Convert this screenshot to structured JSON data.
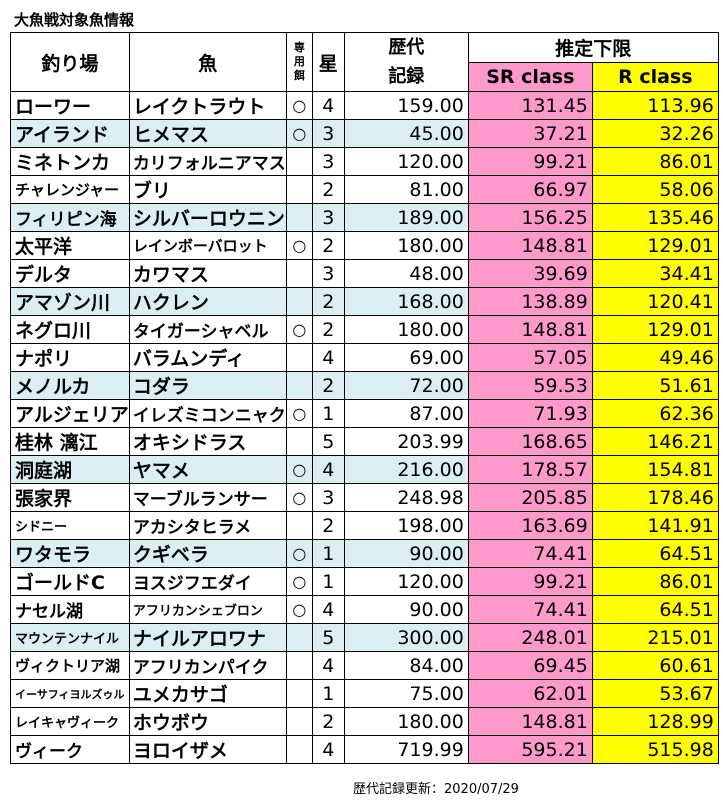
{
  "title": "大魚戦対象魚情報",
  "header": {
    "place": "釣り場",
    "fish": "魚",
    "bait": [
      "専",
      "用",
      "餌"
    ],
    "star": "星",
    "record": [
      "歴代",
      "記録"
    ],
    "limit": "推定下限",
    "sr": "SR class",
    "r": "R class"
  },
  "rows": [
    {
      "place": "ローワー",
      "fish": "レイクトラウト",
      "bait": "○",
      "star": "4",
      "record": "159.00",
      "sr": "131.45",
      "r": "113.96"
    },
    {
      "place": "アイランド",
      "fish": "ヒメマス",
      "bait": "○",
      "star": "3",
      "record": "45.00",
      "sr": "37.21",
      "r": "32.26"
    },
    {
      "place": "ミネトンカ",
      "fish": "カリフォルニアマス",
      "bait": "",
      "star": "3",
      "record": "120.00",
      "sr": "99.21",
      "r": "86.01"
    },
    {
      "place": "チャレンジャー",
      "fish": "ブリ",
      "bait": "",
      "star": "2",
      "record": "81.00",
      "sr": "66.97",
      "r": "58.06"
    },
    {
      "place": "フィリピン海",
      "fish": "シルバーロウニン",
      "bait": "",
      "star": "3",
      "record": "189.00",
      "sr": "156.25",
      "r": "135.46"
    },
    {
      "place": "太平洋",
      "fish": "レインボーバロット",
      "bait": "○",
      "star": "2",
      "record": "180.00",
      "sr": "148.81",
      "r": "129.01"
    },
    {
      "place": "デルタ",
      "fish": "カワマス",
      "bait": "",
      "star": "3",
      "record": "48.00",
      "sr": "39.69",
      "r": "34.41"
    },
    {
      "place": "アマゾン川",
      "fish": "ハクレン",
      "bait": "",
      "star": "2",
      "record": "168.00",
      "sr": "138.89",
      "r": "120.41"
    },
    {
      "place": "ネグロ川",
      "fish": "タイガーシャベル",
      "bait": "○",
      "star": "2",
      "record": "180.00",
      "sr": "148.81",
      "r": "129.01"
    },
    {
      "place": "ナポリ",
      "fish": "バラムンディ",
      "bait": "",
      "star": "4",
      "record": "69.00",
      "sr": "57.05",
      "r": "49.46"
    },
    {
      "place": "メノルカ",
      "fish": "コダラ",
      "bait": "",
      "star": "2",
      "record": "72.00",
      "sr": "59.53",
      "r": "51.61"
    },
    {
      "place": "アルジェリア",
      "fish": "イレズミコンニャク",
      "bait": "○",
      "star": "1",
      "record": "87.00",
      "sr": "71.93",
      "r": "62.36"
    },
    {
      "place": "桂林 漓江",
      "fish": "オキシドラス",
      "bait": "",
      "star": "5",
      "record": "203.99",
      "sr": "168.65",
      "r": "146.21"
    },
    {
      "place": "洞庭湖",
      "fish": "ヤマメ",
      "bait": "○",
      "star": "4",
      "record": "216.00",
      "sr": "178.57",
      "r": "154.81"
    },
    {
      "place": "張家界",
      "fish": "マーブルランサー",
      "bait": "○",
      "star": "3",
      "record": "248.98",
      "sr": "205.85",
      "r": "178.46"
    },
    {
      "place": "シドニー",
      "fish": "アカシタヒラメ",
      "bait": "",
      "star": "2",
      "record": "198.00",
      "sr": "163.69",
      "r": "141.91"
    },
    {
      "place": "ワタモラ",
      "fish": "クギベラ",
      "bait": "○",
      "star": "1",
      "record": "90.00",
      "sr": "74.41",
      "r": "64.51"
    },
    {
      "place": "ゴールドC",
      "fish": "ヨスジフエダイ",
      "bait": "○",
      "star": "1",
      "record": "120.00",
      "sr": "99.21",
      "r": "86.01"
    },
    {
      "place": "ナセル湖",
      "fish": "アフリカンシェブロン",
      "bait": "○",
      "star": "4",
      "record": "90.00",
      "sr": "74.41",
      "r": "64.51"
    },
    {
      "place": "マウンテンナイル",
      "fish": "ナイルアロワナ",
      "bait": "",
      "star": "5",
      "record": "300.00",
      "sr": "248.01",
      "r": "215.01"
    },
    {
      "place": "ヴィクトリア湖",
      "fish": "アフリカンパイク",
      "bait": "",
      "star": "4",
      "record": "84.00",
      "sr": "69.45",
      "r": "60.61"
    },
    {
      "place": "イーサフィヨルズゥル",
      "fish": "ユメカサゴ",
      "bait": "",
      "star": "1",
      "record": "75.00",
      "sr": "62.01",
      "r": "53.67"
    },
    {
      "place": "レイキャヴィーク",
      "fish": "ホウボウ",
      "bait": "",
      "star": "2",
      "record": "180.00",
      "sr": "148.81",
      "r": "128.99"
    },
    {
      "place": "ヴィーク",
      "fish": "ヨロイザメ",
      "bait": "",
      "star": "4",
      "record": "719.99",
      "sr": "595.21",
      "r": "515.98"
    }
  ],
  "footer": "歴代記録更新：2020/07/29",
  "colors": {
    "sr": "#ff99cc",
    "r": "#ffff00",
    "highlight": "#dbeef4"
  }
}
